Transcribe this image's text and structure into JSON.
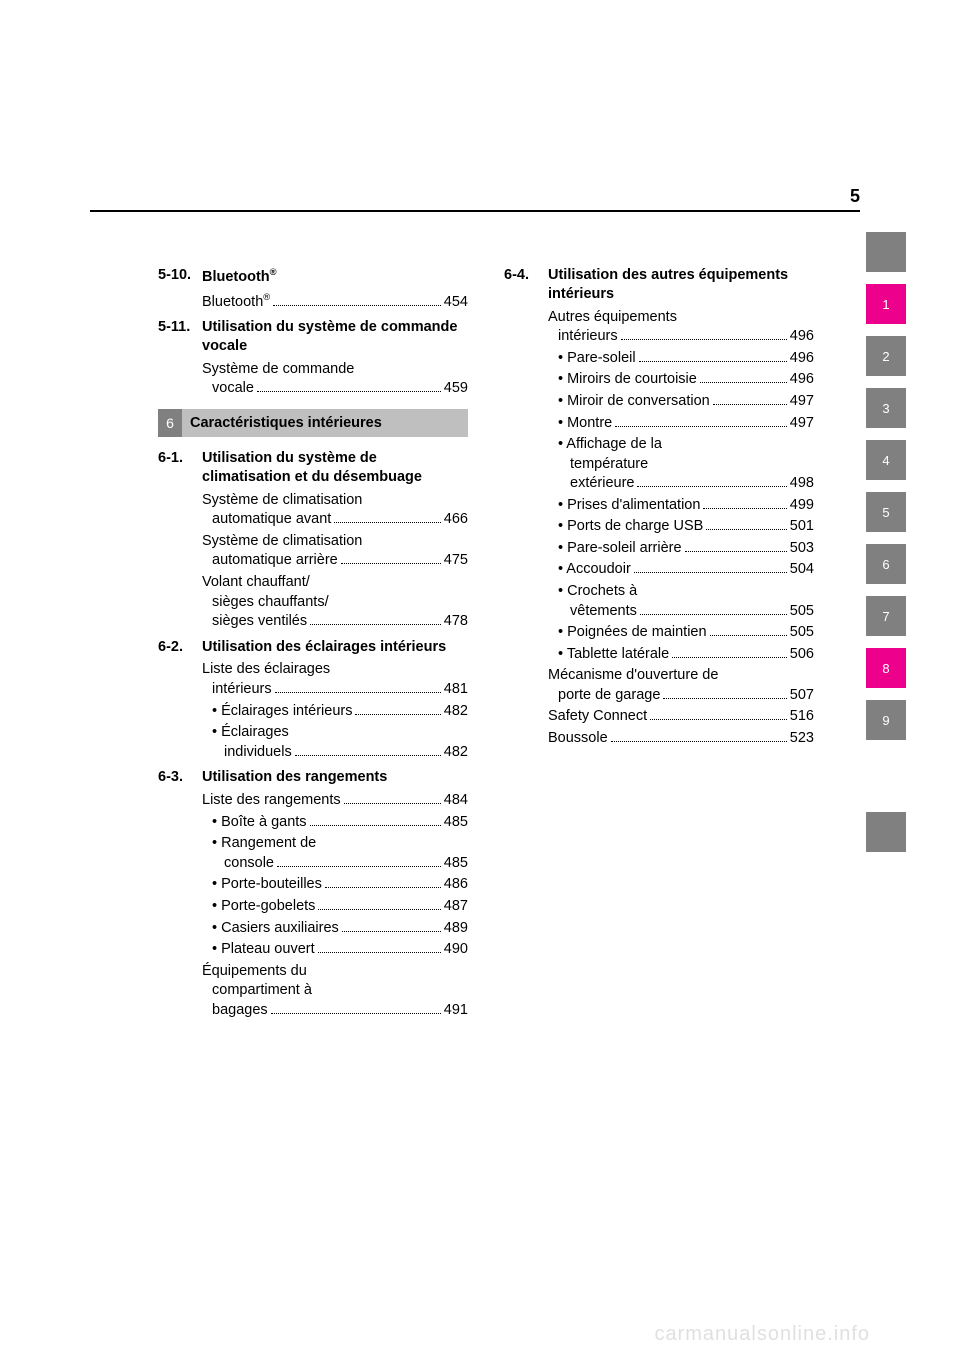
{
  "page_number": "5",
  "left_column": {
    "sec_5_10": {
      "num": "5-10.",
      "title_pre": "Bluetooth",
      "entries": [
        {
          "label_pre": "Bluetooth",
          "page": "454"
        }
      ]
    },
    "sec_5_11": {
      "num": "5-11.",
      "title": "Utilisation du système de commande vocale",
      "entries": [
        {
          "l1": "Système de commande",
          "l2": "vocale",
          "page": "459"
        }
      ]
    },
    "chapter6": {
      "num": "6",
      "label": "Caractéristiques intérieures"
    },
    "sec_6_1": {
      "num": "6-1.",
      "title": "Utilisation du système de climatisation et du désembuage",
      "entries": [
        {
          "l1": "Système de climatisation",
          "l2": "automatique avant",
          "page": "466"
        },
        {
          "l1": "Système de climatisation",
          "l2": "automatique arrière",
          "page": "475"
        },
        {
          "l1": "Volant chauffant/",
          "l2": "sièges chauffants/",
          "l3": "sièges ventilés",
          "page": "478"
        }
      ]
    },
    "sec_6_2": {
      "num": "6-2.",
      "title": "Utilisation des éclairages intérieurs",
      "entries": [
        {
          "l1": "Liste des éclairages",
          "l2": "intérieurs",
          "page": "481"
        }
      ],
      "subs": [
        {
          "label": "• Éclairages intérieurs",
          "page": "482"
        },
        {
          "l1": "• Éclairages",
          "l2_pad": "individuels",
          "page": "482"
        }
      ]
    },
    "sec_6_3": {
      "num": "6-3.",
      "title": "Utilisation des rangements",
      "entries": [
        {
          "label": "Liste des rangements",
          "page": "484"
        }
      ],
      "subs": [
        {
          "label": "• Boîte à gants",
          "page": "485"
        },
        {
          "l1": "• Rangement de",
          "l2_pad": "console",
          "page": "485"
        },
        {
          "label": "• Porte-bouteilles",
          "page": "486"
        },
        {
          "label": "• Porte-gobelets",
          "page": "487"
        },
        {
          "label": "• Casiers auxiliaires",
          "page": "489"
        },
        {
          "label": "• Plateau ouvert",
          "page": "490"
        }
      ],
      "tail": [
        {
          "l1": "Équipements du",
          "l2": "compartiment à",
          "l3": "bagages",
          "page": "491"
        }
      ]
    }
  },
  "right_column": {
    "sec_6_4": {
      "num": "6-4.",
      "title": "Utilisation des autres équipements intérieurs",
      "entries_head": [
        {
          "l1": "Autres équipements",
          "l2": "intérieurs",
          "page": "496"
        }
      ],
      "subs": [
        {
          "label": "• Pare-soleil",
          "page": "496"
        },
        {
          "label": "• Miroirs de courtoisie",
          "page": "496"
        },
        {
          "label": "• Miroir de conversation",
          "page": "497"
        },
        {
          "label": "• Montre",
          "page": "497"
        },
        {
          "l1": "• Affichage de la",
          "l2_pad": "température",
          "l3_pad": "extérieure",
          "page": "498"
        },
        {
          "label": "• Prises d'alimentation",
          "page": "499"
        },
        {
          "label": "• Ports de charge USB",
          "page": "501"
        },
        {
          "label": "• Pare-soleil arrière",
          "page": "503"
        },
        {
          "label": "• Accoudoir",
          "page": "504"
        },
        {
          "l1": "• Crochets à",
          "l2_pad": "vêtements",
          "page": "505"
        },
        {
          "label": "• Poignées de maintien",
          "page": "505"
        },
        {
          "label": "• Tablette latérale",
          "page": "506"
        }
      ],
      "tail": [
        {
          "l1": "Mécanisme d'ouverture de",
          "l2": "porte de garage",
          "page": "507"
        },
        {
          "label": "Safety Connect",
          "page": "516"
        },
        {
          "label": "Boussole",
          "page": "523"
        }
      ]
    }
  },
  "sidebar": {
    "top_blank_color": "#808080",
    "tabs": [
      {
        "n": "1",
        "color": "#ec008c"
      },
      {
        "n": "2",
        "color": "#808080"
      },
      {
        "n": "3",
        "color": "#808080"
      },
      {
        "n": "4",
        "color": "#808080"
      },
      {
        "n": "5",
        "color": "#808080"
      },
      {
        "n": "6",
        "color": "#808080"
      },
      {
        "n": "7",
        "color": "#808080"
      },
      {
        "n": "8",
        "color": "#ec008c"
      },
      {
        "n": "9",
        "color": "#808080"
      }
    ],
    "bottom_blank_color": "#808080"
  },
  "watermark": "carmanualsonline.info"
}
